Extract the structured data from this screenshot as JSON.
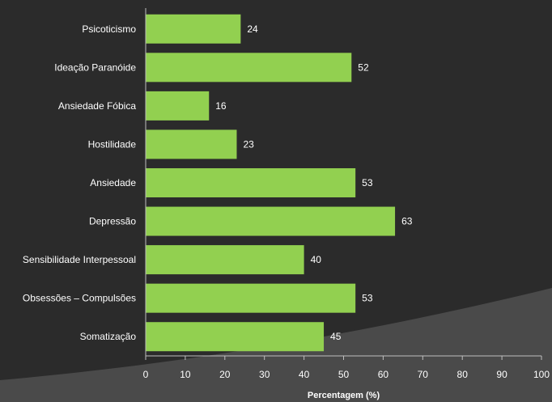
{
  "colors": {
    "background": "#2b2b2b",
    "background_swoosh": "#4a4a4a",
    "bar": "#92d050",
    "text": "#ffffff",
    "axis": "#bfbfbf"
  },
  "chart_data": {
    "type": "bar",
    "orientation": "horizontal",
    "categories": [
      "Psicoticismo",
      "Ideação Paranóide",
      "Ansiedade Fóbica",
      "Hostilidade",
      "Ansiedade",
      "Depressão",
      "Sensibilidade Interpessoal",
      "Obsessões – Compulsões",
      "Somatização"
    ],
    "values": [
      24,
      52,
      16,
      23,
      53,
      63,
      40,
      53,
      45
    ],
    "data_labels": [
      "24",
      "52",
      "16",
      "23",
      "53",
      "63",
      "40",
      "53",
      "45"
    ],
    "title": "",
    "xlabel": "Percentagem (%)",
    "ylabel": "",
    "xlim": [
      0,
      100
    ],
    "xticks": [
      0,
      10,
      20,
      30,
      40,
      50,
      60,
      70,
      80,
      90,
      100
    ],
    "xtick_labels": [
      "0",
      "10",
      "20",
      "30",
      "40",
      "50",
      "60",
      "70",
      "80",
      "90",
      "100"
    ],
    "grid": false,
    "legend": "none"
  }
}
